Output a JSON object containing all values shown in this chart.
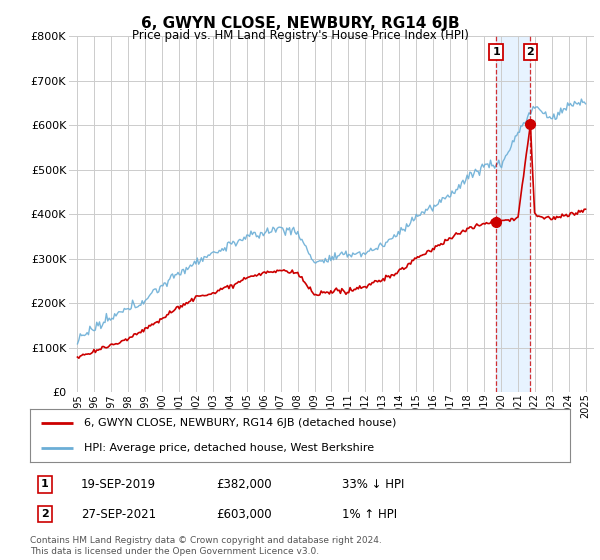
{
  "title": "6, GWYN CLOSE, NEWBURY, RG14 6JB",
  "subtitle": "Price paid vs. HM Land Registry's House Price Index (HPI)",
  "ylim": [
    0,
    800000
  ],
  "xlim_start": 1994.5,
  "xlim_end": 2025.5,
  "xticks": [
    1995,
    1996,
    1997,
    1998,
    1999,
    2000,
    2001,
    2002,
    2003,
    2004,
    2005,
    2006,
    2007,
    2008,
    2009,
    2010,
    2011,
    2012,
    2013,
    2014,
    2015,
    2016,
    2017,
    2018,
    2019,
    2020,
    2021,
    2022,
    2023,
    2024,
    2025
  ],
  "hpi_color": "#6baed6",
  "price_color": "#cc0000",
  "shade_color": "#ddeeff",
  "transaction1": {
    "date": "19-SEP-2019",
    "price": 382000,
    "label": "1",
    "x": 2019.72
  },
  "transaction2": {
    "date": "27-SEP-2021",
    "price": 603000,
    "label": "2",
    "x": 2021.74
  },
  "legend_label1": "6, GWYN CLOSE, NEWBURY, RG14 6JB (detached house)",
  "legend_label2": "HPI: Average price, detached house, West Berkshire",
  "footnote": "Contains HM Land Registry data © Crown copyright and database right 2024.\nThis data is licensed under the Open Government Licence v3.0.",
  "background_color": "#ffffff",
  "grid_color": "#cccccc",
  "hpi_anchors_x": [
    1995,
    1996,
    1997,
    1998,
    1999,
    2000,
    2001,
    2002,
    2003,
    2004,
    2005,
    2006,
    2007,
    2008,
    2009,
    2010,
    2011,
    2012,
    2013,
    2014,
    2015,
    2016,
    2017,
    2018,
    2019,
    2020,
    2021,
    2022,
    2023,
    2024,
    2025
  ],
  "hpi_anchors_y": [
    120000,
    140000,
    160000,
    185000,
    210000,
    240000,
    270000,
    295000,
    310000,
    330000,
    350000,
    360000,
    370000,
    360000,
    290000,
    300000,
    310000,
    315000,
    330000,
    360000,
    400000,
    420000,
    450000,
    490000,
    520000,
    520000,
    590000,
    650000,
    620000,
    650000,
    660000
  ],
  "price_anchors_x": [
    1995,
    1996,
    1997,
    1998,
    1999,
    2000,
    2001,
    2002,
    2003,
    2004,
    2005,
    2006,
    2007,
    2008,
    2009,
    2010,
    2011,
    2012,
    2013,
    2014,
    2015,
    2016,
    2017,
    2018,
    2019,
    2019.72,
    2020,
    2021,
    2021.74,
    2022,
    2023,
    2024,
    2025
  ],
  "price_anchors_y": [
    78000,
    90000,
    105000,
    120000,
    140000,
    165000,
    190000,
    210000,
    220000,
    235000,
    255000,
    265000,
    270000,
    265000,
    215000,
    220000,
    225000,
    235000,
    250000,
    270000,
    300000,
    320000,
    345000,
    365000,
    375000,
    382000,
    385000,
    390000,
    603000,
    400000,
    390000,
    400000,
    410000
  ]
}
